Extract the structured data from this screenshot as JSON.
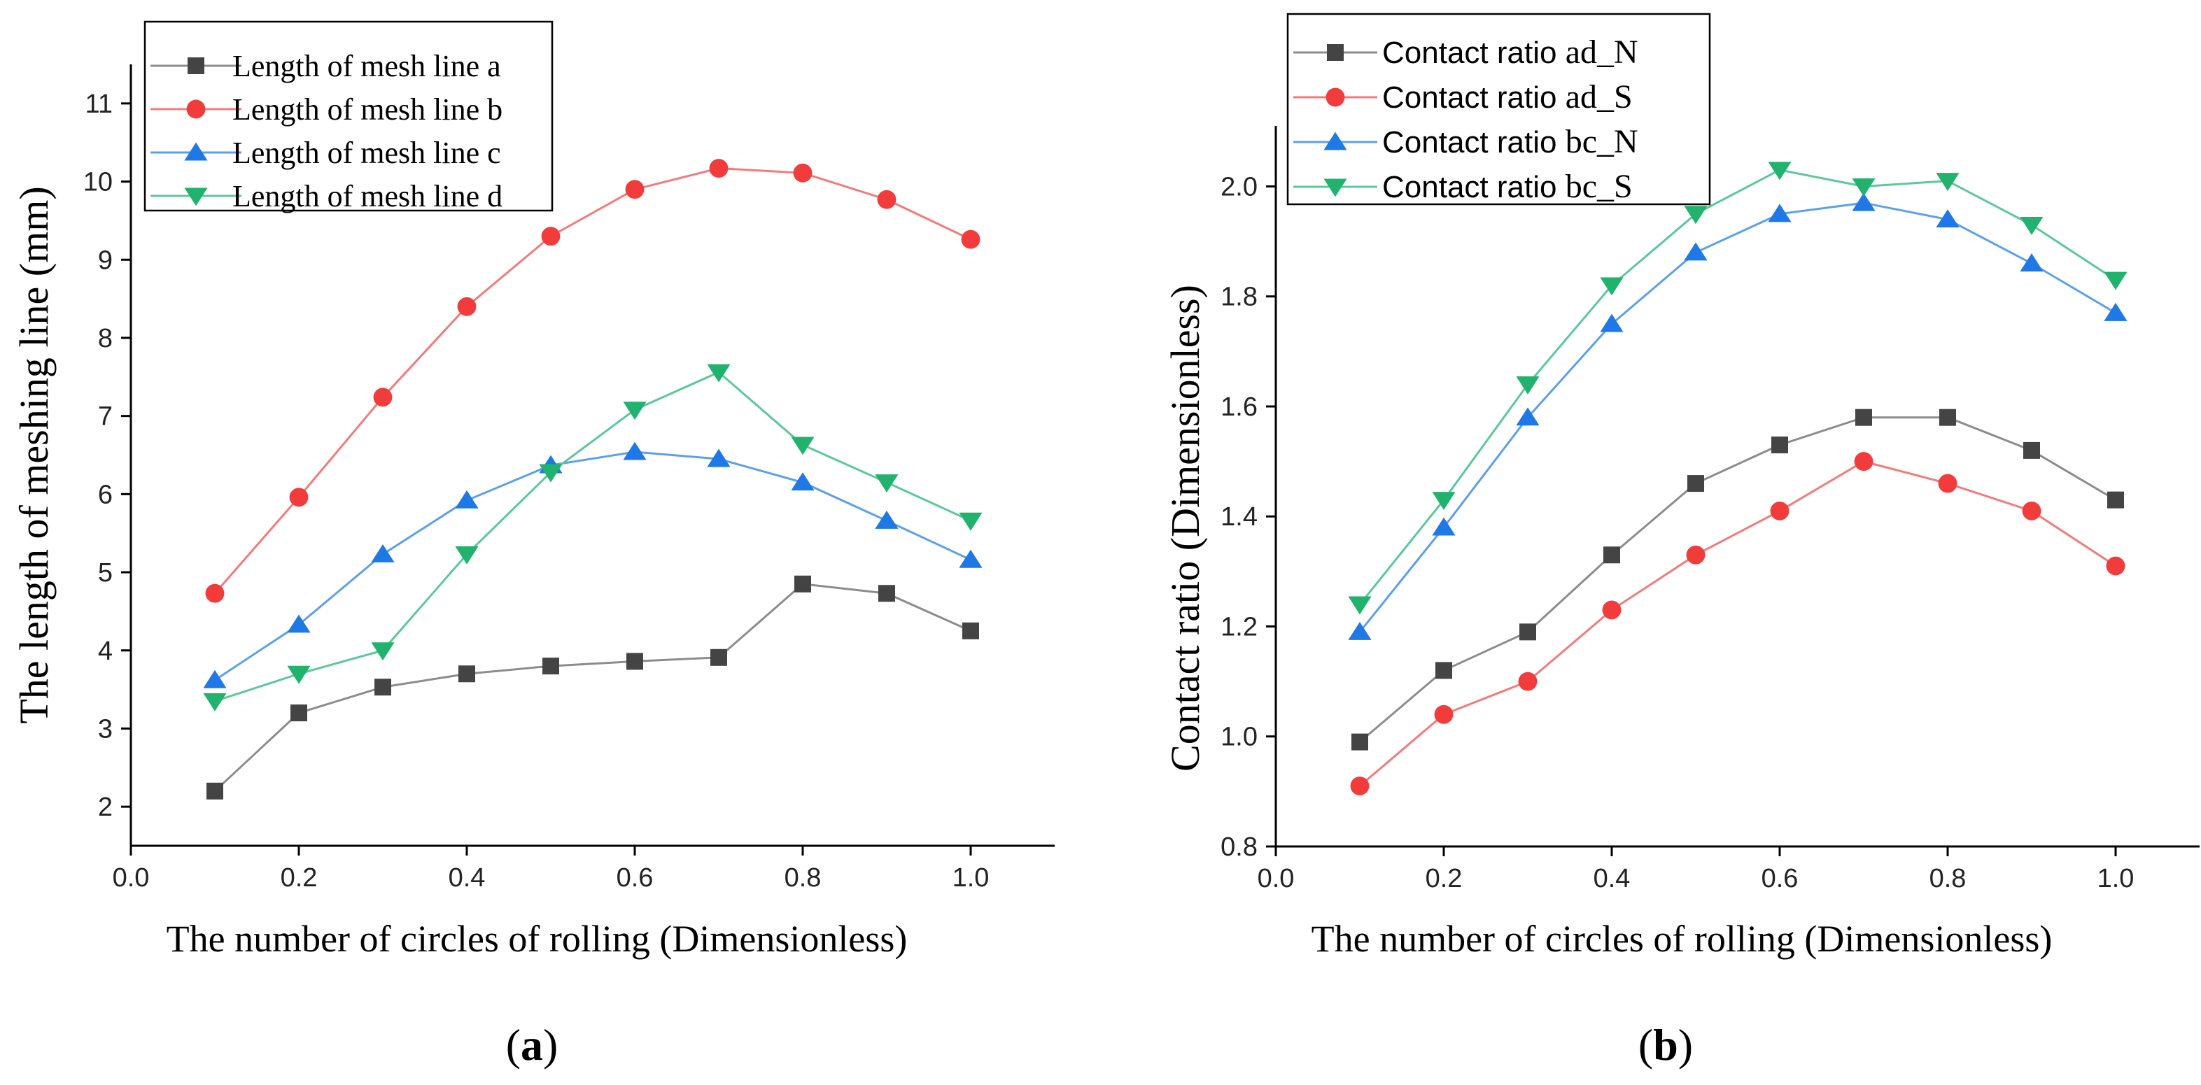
{
  "chart_data": [
    {
      "type": "line",
      "panel_label": "(a)",
      "panel_letter": "a",
      "xlabel": "The number of circles of rolling (Dimensionless)",
      "ylabel": "The length of meshing line (mm)",
      "xlim": [
        0.0,
        1.1
      ],
      "ylim": [
        1.5,
        11.5
      ],
      "xticks": [
        0.0,
        0.2,
        0.4,
        0.6,
        0.8,
        1.0
      ],
      "xtick_labels": [
        "0.0",
        "0.2",
        "0.4",
        "0.6",
        "0.8",
        "1.0"
      ],
      "yticks": [
        2,
        3,
        4,
        5,
        6,
        7,
        8,
        9,
        10,
        11
      ],
      "ytick_labels": [
        "2",
        "3",
        "4",
        "5",
        "6",
        "7",
        "8",
        "9",
        "10",
        "11"
      ],
      "legend_position": "top-left",
      "x": [
        0.1,
        0.2,
        0.3,
        0.4,
        0.5,
        0.6,
        0.7,
        0.8,
        0.9,
        1.0
      ],
      "series": [
        {
          "name": "Length of mesh line a",
          "marker": "square",
          "color": "#444444",
          "line_color": "#8c8c8c",
          "values": [
            2.2,
            3.2,
            3.53,
            3.7,
            3.8,
            3.86,
            3.91,
            4.85,
            4.73,
            4.25
          ]
        },
        {
          "name": "Length of mesh line b",
          "marker": "circle",
          "color": "#f23c3c",
          "line_color": "#f47a7a",
          "values": [
            4.73,
            5.96,
            7.24,
            8.4,
            9.3,
            9.9,
            10.17,
            10.11,
            9.77,
            9.26
          ]
        },
        {
          "name": "Length of mesh line c",
          "marker": "triangle-up",
          "color": "#1e78e6",
          "line_color": "#5aa0ec",
          "values": [
            3.62,
            4.33,
            5.23,
            5.92,
            6.37,
            6.54,
            6.45,
            6.15,
            5.66,
            5.16
          ]
        },
        {
          "name": "Length of mesh line d",
          "marker": "triangle-down",
          "color": "#21b36e",
          "line_color": "#5cc89a",
          "values": [
            3.35,
            3.7,
            4.0,
            5.23,
            6.28,
            7.08,
            7.56,
            6.63,
            6.15,
            5.66
          ]
        }
      ]
    },
    {
      "type": "line",
      "panel_label": "(b)",
      "panel_letter": "b",
      "xlabel": "The number of circles of rolling (Dimensionless)",
      "ylabel": "Contact ratio (Dimensionless)",
      "xlim": [
        0.0,
        1.1
      ],
      "ylim": [
        0.8,
        2.11
      ],
      "xticks": [
        0.0,
        0.2,
        0.4,
        0.6,
        0.8,
        1.0
      ],
      "xtick_labels": [
        "0.0",
        "0.2",
        "0.4",
        "0.6",
        "0.8",
        "1.0"
      ],
      "yticks": [
        0.8,
        1.0,
        1.2,
        1.4,
        1.6,
        1.8,
        2.0
      ],
      "ytick_labels": [
        "0.8",
        "1.0",
        "1.2",
        "1.4",
        "1.6",
        "1.8",
        "2.0"
      ],
      "legend_position": "top-left",
      "x": [
        0.1,
        0.2,
        0.3,
        0.4,
        0.5,
        0.6,
        0.7,
        0.8,
        0.9,
        1.0
      ],
      "series": [
        {
          "name": "Contact ratio ad_N",
          "name_main": "Contact ratio ",
          "name_suffix": "ad_N",
          "marker": "square",
          "color": "#444444",
          "line_color": "#8c8c8c",
          "values": [
            0.99,
            1.12,
            1.19,
            1.33,
            1.46,
            1.53,
            1.58,
            1.58,
            1.52,
            1.43
          ]
        },
        {
          "name": "Contact ratio ad_S",
          "name_main": "Contact ratio ",
          "name_suffix": "ad_S",
          "marker": "circle",
          "color": "#f23c3c",
          "line_color": "#f47a7a",
          "values": [
            0.91,
            1.04,
            1.1,
            1.23,
            1.33,
            1.41,
            1.5,
            1.46,
            1.41,
            1.31
          ]
        },
        {
          "name": "Contact ratio bc_N",
          "name_main": "Contact ratio ",
          "name_suffix": "bc_N",
          "marker": "triangle-up",
          "color": "#1e78e6",
          "line_color": "#5aa0ec",
          "values": [
            1.19,
            1.38,
            1.58,
            1.75,
            1.88,
            1.95,
            1.97,
            1.94,
            1.86,
            1.77
          ]
        },
        {
          "name": "Contact ratio bc_S",
          "name_main": "Contact ratio ",
          "name_suffix": "bc_S",
          "marker": "triangle-down",
          "color": "#21b36e",
          "line_color": "#5cc89a",
          "values": [
            1.24,
            1.43,
            1.64,
            1.82,
            1.95,
            2.03,
            2.0,
            2.01,
            1.93,
            1.83
          ]
        }
      ]
    }
  ]
}
